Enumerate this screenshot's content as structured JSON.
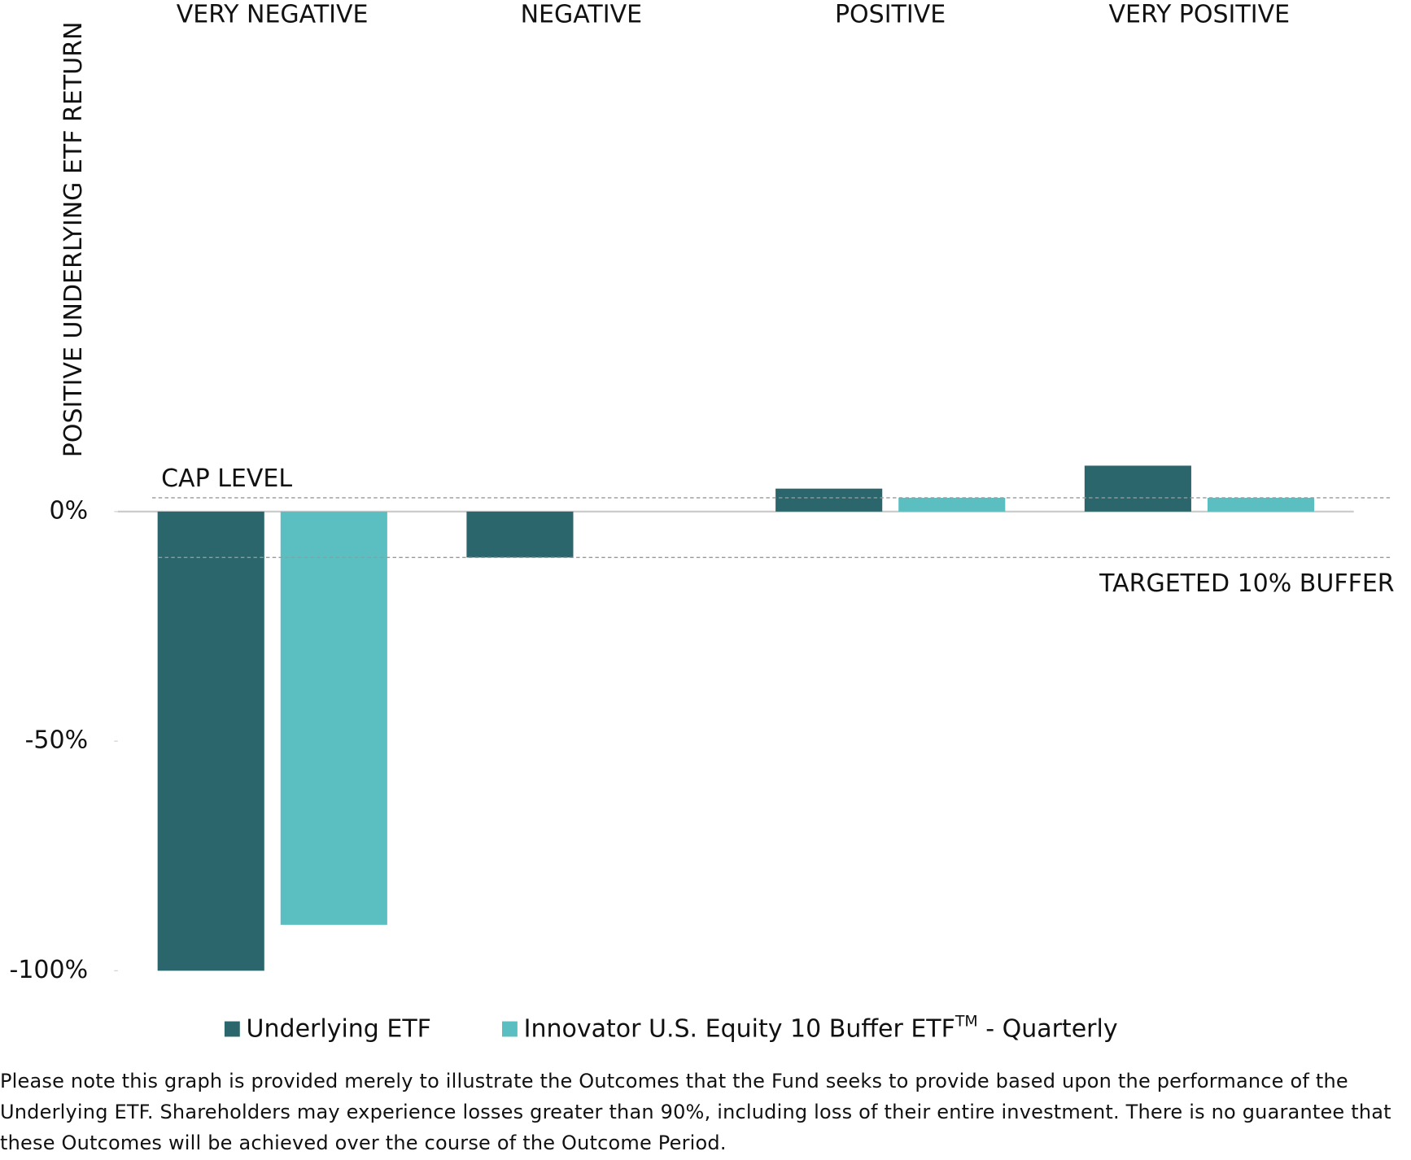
{
  "chart_data": {
    "type": "bar",
    "y_axis_label": "POSITIVE UNDERLYING ETF RETURN",
    "categories": [
      "VERY NEGATIVE",
      "NEGATIVE",
      "POSITIVE",
      "VERY POSITIVE"
    ],
    "series": [
      {
        "name": "Underlying ETF",
        "color": "#2a666c",
        "values": [
          -100,
          -10,
          5,
          10
        ]
      },
      {
        "name": "Innovator U.S. Equity 10 Buffer ETF",
        "name_superscript": "TM",
        "name_suffix": " - Quarterly",
        "color": "#5bbfc2",
        "values": [
          -90,
          0,
          3,
          3
        ]
      }
    ],
    "ylim": [
      -100,
      10
    ],
    "yticks": [
      {
        "value": 0,
        "label": "0%"
      },
      {
        "value": -50,
        "label": "-50%"
      },
      {
        "value": -100,
        "label": "-100%"
      }
    ],
    "reference_lines": [
      {
        "label": "CAP LEVEL",
        "value": 3
      },
      {
        "label": "TARGETED 10% BUFFER",
        "value": -10
      }
    ],
    "note": "Please note this graph is provided merely to illustrate the Outcomes that the Fund seeks to provide based upon the performance of the Underlying ETF. Shareholders may experience losses greater than 90%, including loss of their entire investment. There is no guarantee that these Outcomes will be achieved over the course of the Outcome Period."
  }
}
